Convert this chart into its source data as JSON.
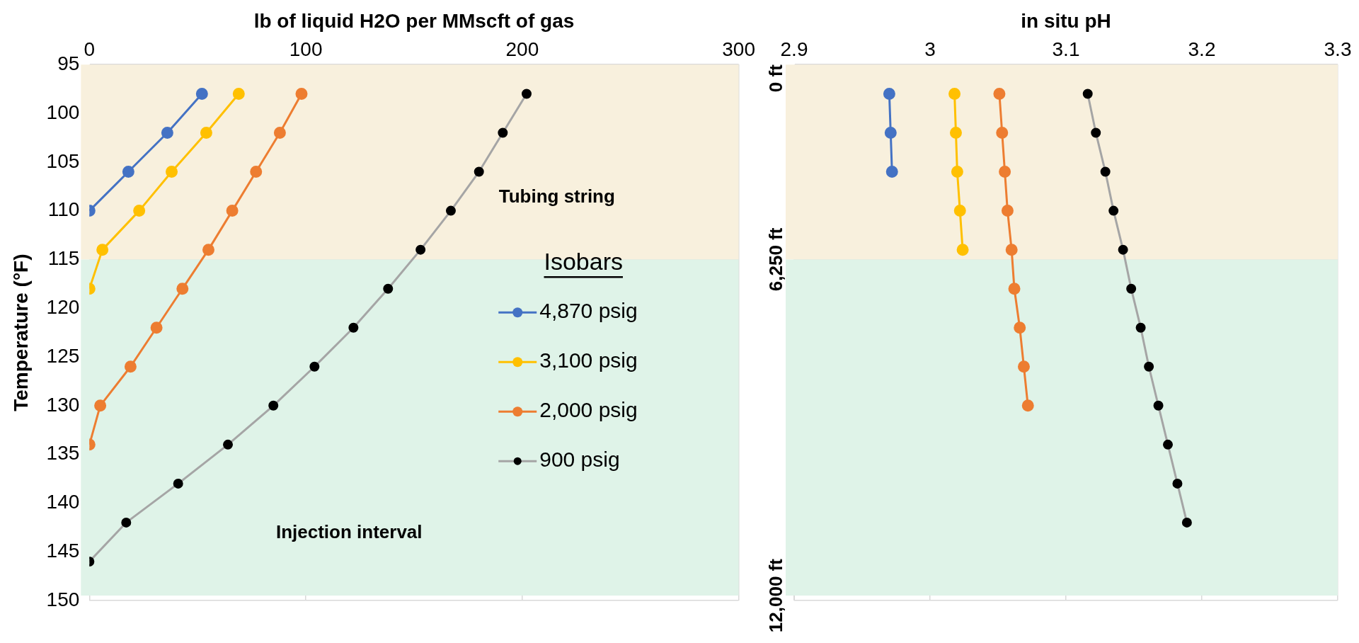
{
  "chart_data": [
    {
      "type": "line",
      "xlabel": "lb of liquid H2O per MMscft of gas",
      "ylabel": "Temperature (°F)",
      "xlim": [
        0,
        300
      ],
      "xticks": [
        0,
        100,
        200,
        300
      ],
      "ylim": [
        150,
        95
      ],
      "yticks": [
        95,
        100,
        105,
        110,
        115,
        120,
        125,
        130,
        135,
        140,
        145,
        150
      ],
      "grid": true,
      "legend": "right",
      "legend_title": "Isobars",
      "marker": "circle",
      "line_style": "solid",
      "bands": [
        {
          "axis": "y",
          "from": 95,
          "to": 115,
          "label": "Tubing string",
          "color": "#f8f0dd"
        },
        {
          "axis": "y",
          "from": 115,
          "to": 149.5,
          "label": "Injection interval",
          "color": "#dff3e8"
        }
      ],
      "series": [
        {
          "name": "4,870 psig",
          "color": "#4472c4",
          "x": [
            52,
            36,
            18,
            0
          ],
          "values": [
            98,
            102,
            106,
            110
          ]
        },
        {
          "name": "3,100 psig",
          "color": "#ffc000",
          "x": [
            69,
            54,
            38,
            23,
            6,
            0
          ],
          "values": [
            98,
            102,
            106,
            110,
            114,
            118
          ]
        },
        {
          "name": "2,000 psig",
          "color": "#ed7d31",
          "x": [
            98,
            88,
            77,
            66,
            55,
            43,
            31,
            19,
            5,
            0
          ],
          "values": [
            98,
            102,
            106,
            110,
            114,
            118,
            122,
            126,
            130,
            134
          ]
        },
        {
          "name": "900 psig",
          "color": "#a5a5a5",
          "colors": [
            "#000000",
            "#000000",
            "#000000",
            "#000000",
            "#000000",
            "#000000",
            "#000000",
            "#000000",
            "#000000",
            "#000000",
            "#000000",
            "#000000",
            "#000000"
          ],
          "x": [
            202,
            191,
            180,
            167,
            153,
            138,
            122,
            104,
            85,
            64,
            41,
            17,
            0
          ],
          "values": [
            98,
            102,
            106,
            110,
            114,
            118,
            122,
            126,
            130,
            134,
            138,
            142,
            146
          ]
        }
      ]
    },
    {
      "type": "line",
      "xlabel": "in situ pH",
      "xlim": [
        2.9,
        3.3
      ],
      "xticks": [
        2.9,
        3,
        3.1,
        3.2,
        3.3
      ],
      "ylim": [
        150,
        95
      ],
      "yticks": [
        95,
        100,
        105,
        110,
        115,
        120,
        125,
        130,
        135,
        140,
        145,
        150
      ],
      "tick_labels": "x",
      "grid": true,
      "marker": "circle",
      "line_style": "solid",
      "bands": [
        {
          "axis": "y",
          "from": 95,
          "to": 115,
          "color": "#f8f0dd"
        },
        {
          "axis": "y",
          "from": 115,
          "to": 149.5,
          "color": "#dff3e8"
        }
      ],
      "annotations": [
        "0 ft",
        "6,250 ft",
        "12,000 ft"
      ],
      "series": [
        {
          "color": "#4472c4",
          "x": [
            2.97,
            2.971,
            2.972
          ],
          "values": [
            98,
            102,
            106
          ]
        },
        {
          "color": "#ffc000",
          "x": [
            3.018,
            3.019,
            3.02,
            3.022,
            3.024
          ],
          "values": [
            98,
            102,
            106,
            110,
            114
          ]
        },
        {
          "color": "#ed7d31",
          "x": [
            3.051,
            3.053,
            3.055,
            3.057,
            3.06,
            3.062,
            3.066,
            3.069,
            3.072
          ],
          "values": [
            98,
            102,
            106,
            110,
            114,
            118,
            122,
            126,
            130
          ]
        },
        {
          "color": "#a5a5a5",
          "colors": [
            "#000000",
            "#000000",
            "#000000",
            "#000000",
            "#000000",
            "#000000",
            "#000000",
            "#000000",
            "#000000",
            "#000000",
            "#000000",
            "#000000"
          ],
          "x": [
            3.116,
            3.122,
            3.129,
            3.135,
            3.142,
            3.148,
            3.155,
            3.161,
            3.168,
            3.175,
            3.182,
            3.189
          ],
          "values": [
            98,
            102,
            106,
            110,
            114,
            118,
            122,
            126,
            130,
            134,
            138,
            142
          ]
        }
      ]
    }
  ]
}
